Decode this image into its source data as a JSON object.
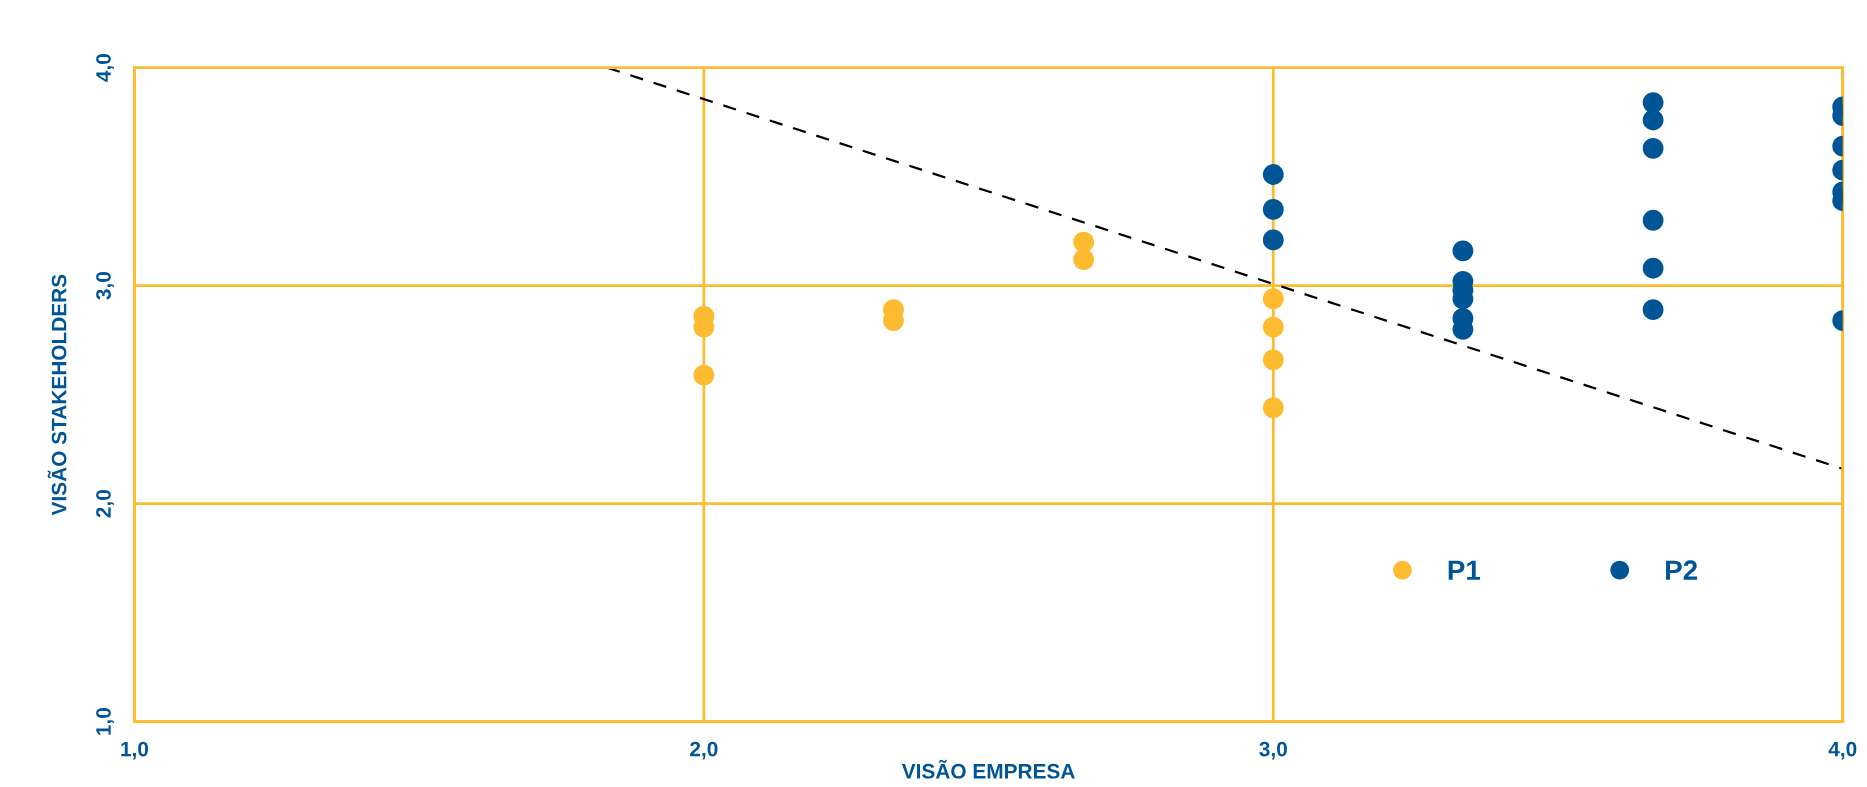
{
  "chart_data": {
    "type": "scatter",
    "xlabel": "VISÃO EMPRESA",
    "ylabel": "VISÃO STAKEHOLDERS",
    "xlim": [
      1.0,
      4.0
    ],
    "ylim": [
      1.0,
      4.0
    ],
    "xticks": [
      {
        "value": 1.0,
        "label": "1,0"
      },
      {
        "value": 2.0,
        "label": "2,0"
      },
      {
        "value": 3.0,
        "label": "3,0"
      },
      {
        "value": 4.0,
        "label": "4,0"
      }
    ],
    "yticks": [
      {
        "value": 1.0,
        "label": "1,0"
      },
      {
        "value": 2.0,
        "label": "2,0"
      },
      {
        "value": 3.0,
        "label": "3,0"
      },
      {
        "value": 4.0,
        "label": "4,0"
      }
    ],
    "grid": true,
    "legend": "bottom right",
    "marker": "circle",
    "series": [
      {
        "name": "P1",
        "color": "#fdbb30",
        "x": [
          2.0,
          2.0,
          2.0,
          2.333,
          2.333,
          2.667,
          2.667,
          3.0,
          3.0,
          3.0,
          3.0
        ],
        "values": [
          2.86,
          2.81,
          2.59,
          2.89,
          2.84,
          3.2,
          3.12,
          2.94,
          2.81,
          2.66,
          2.44
        ]
      },
      {
        "name": "P2",
        "color": "#005596",
        "x": [
          3.0,
          3.0,
          3.0,
          3.333,
          3.333,
          3.333,
          3.333,
          3.333,
          3.333,
          3.667,
          3.667,
          3.667,
          3.667,
          3.667,
          3.667,
          4.0,
          4.0,
          4.0,
          4.0,
          4.0,
          4.0,
          4.0
        ],
        "values": [
          3.51,
          3.35,
          3.21,
          3.16,
          3.02,
          2.98,
          2.94,
          2.85,
          2.8,
          3.84,
          3.76,
          3.63,
          3.3,
          3.08,
          2.89,
          3.82,
          3.78,
          3.64,
          3.53,
          3.43,
          3.39,
          2.84
        ]
      },
      {
        "type": "line",
        "color": "#000000",
        "line_style": "dashed",
        "marker": "none",
        "x": [
          1.83,
          4.0
        ],
        "values": [
          4.0,
          2.16
        ]
      }
    ]
  }
}
